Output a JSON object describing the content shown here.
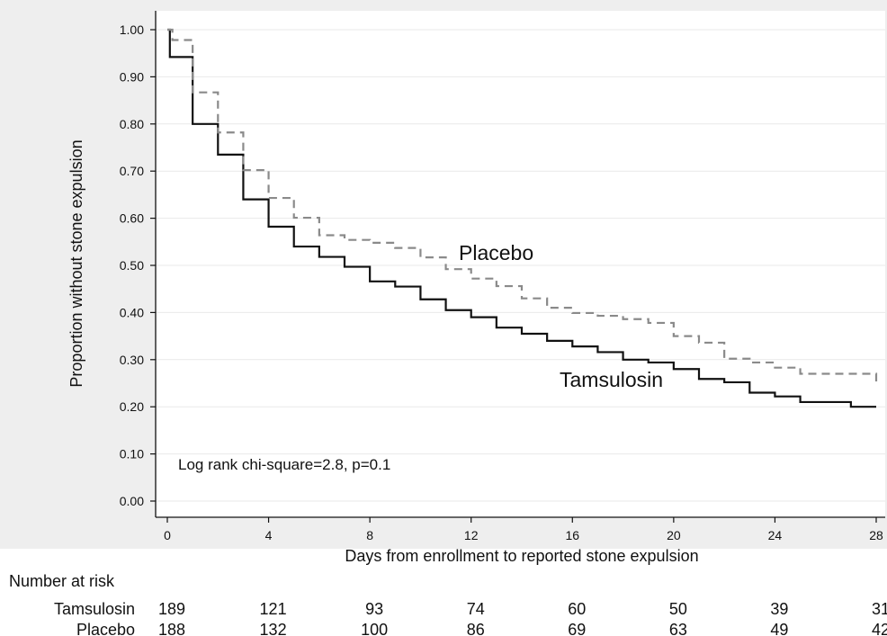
{
  "colors": {
    "tamsulosin": "#111111",
    "placebo": "#8a8a8a",
    "grid": "#e9e9e9",
    "frame_bg": "#eeeeee"
  },
  "chart_data": {
    "type": "line",
    "subtype": "kaplan-meier step",
    "ylabel": "Proportion without stone expulsion",
    "xlabel": "Days from enrollment to reported stone expulsion",
    "xlim": [
      0,
      28
    ],
    "ylim": [
      0,
      1
    ],
    "xticks": [
      0,
      4,
      8,
      12,
      16,
      20,
      24,
      28
    ],
    "yticks": [
      "0.00",
      "0.10",
      "0.20",
      "0.30",
      "0.40",
      "0.50",
      "0.60",
      "0.70",
      "0.80",
      "0.90",
      "1.00"
    ],
    "grid": true,
    "annotation": "Log rank chi-square=2.8, p=0.1",
    "series": [
      {
        "name": "Tamsulosin",
        "style": "solid",
        "x": [
          0,
          0.1,
          1,
          2,
          3,
          4,
          5,
          6,
          7,
          8,
          9,
          10,
          11,
          12,
          13,
          14,
          15,
          16,
          17,
          18,
          19,
          20,
          21,
          22,
          23,
          24,
          25,
          27,
          28
        ],
        "y": [
          1.0,
          0.942,
          0.8,
          0.735,
          0.64,
          0.582,
          0.54,
          0.518,
          0.497,
          0.466,
          0.455,
          0.428,
          0.405,
          0.39,
          0.368,
          0.355,
          0.34,
          0.328,
          0.316,
          0.3,
          0.294,
          0.28,
          0.259,
          0.252,
          0.23,
          0.222,
          0.21,
          0.2,
          0.2
        ]
      },
      {
        "name": "Placebo",
        "style": "dashed",
        "x": [
          0,
          0.2,
          1,
          2,
          3,
          4,
          5,
          6,
          7,
          8,
          9,
          10,
          11,
          12,
          13,
          14,
          15,
          16,
          17,
          18,
          19,
          20,
          21,
          22,
          23,
          24,
          25,
          28
        ],
        "y": [
          1.0,
          0.978,
          0.867,
          0.782,
          0.702,
          0.643,
          0.601,
          0.564,
          0.554,
          0.548,
          0.537,
          0.517,
          0.492,
          0.472,
          0.456,
          0.43,
          0.41,
          0.399,
          0.393,
          0.386,
          0.378,
          0.35,
          0.336,
          0.302,
          0.294,
          0.283,
          0.27,
          0.25
        ]
      }
    ],
    "curve_labels": [
      "Placebo",
      "Tamsulosin"
    ],
    "risk_table": {
      "title": "Number at risk",
      "timepoints": [
        0,
        4,
        8,
        12,
        16,
        20,
        24,
        28
      ],
      "rows": [
        {
          "name": "Tamsulosin",
          "values": [
            "189",
            "121",
            "93",
            "74",
            "60",
            "50",
            "39",
            "31"
          ]
        },
        {
          "name": "Placebo",
          "values": [
            "188",
            "132",
            "100",
            "86",
            "69",
            "63",
            "49",
            "42"
          ]
        }
      ]
    }
  }
}
